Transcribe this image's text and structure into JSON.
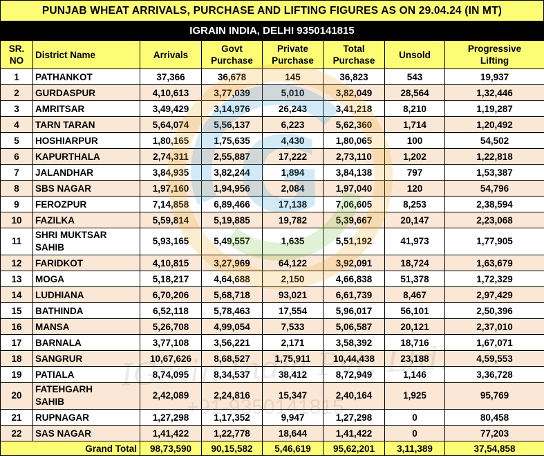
{
  "title": "PUNJAB WHEAT ARRIVALS, PURCHASE AND LIFTING FIGURES AS ON 29.04.24 (IN MT)",
  "subtitle": "IGRAIN INDIA, DELHI 9350141815",
  "headers": {
    "sr_line1": "SR.",
    "sr_line2": "NO",
    "district": "District Name",
    "arrivals": "Arrivals",
    "govt_line1": "Govt",
    "govt_line2": "Purchase",
    "private_line1": "Private",
    "private_line2": "Purchase",
    "total_line1": "Total",
    "total_line2": "Purchase",
    "unsold": "Unsold",
    "lifting_line1": "Progressive",
    "lifting_line2": "Lifting"
  },
  "rows": [
    {
      "sr": "1",
      "district_line1": "PATHANKOT",
      "district_line2": "",
      "arrivals": "37,366",
      "govt": "36,678",
      "private": "145",
      "total": "36,823",
      "unsold": "543",
      "lifting": "19,937"
    },
    {
      "sr": "2",
      "district_line1": "GURDASPUR",
      "district_line2": "",
      "arrivals": "4,10,613",
      "govt": "3,77,039",
      "private": "5,010",
      "total": "3,82,049",
      "unsold": "28,564",
      "lifting": "1,32,446"
    },
    {
      "sr": "3",
      "district_line1": "AMRITSAR",
      "district_line2": "",
      "arrivals": "3,49,429",
      "govt": "3,14,976",
      "private": "26,243",
      "total": "3,41,218",
      "unsold": "8,210",
      "lifting": "1,19,287"
    },
    {
      "sr": "4",
      "district_line1": "TARN TARAN",
      "district_line2": "",
      "arrivals": "5,64,074",
      "govt": "5,56,137",
      "private": "6,223",
      "total": "5,62,360",
      "unsold": "1,714",
      "lifting": "1,20,492"
    },
    {
      "sr": "5",
      "district_line1": "HOSHIARPUR",
      "district_line2": "",
      "arrivals": "1,80,165",
      "govt": "1,75,635",
      "private": "4,430",
      "total": "1,80,065",
      "unsold": "100",
      "lifting": "54,502"
    },
    {
      "sr": "6",
      "district_line1": "KAPURTHALA",
      "district_line2": "",
      "arrivals": "2,74,311",
      "govt": "2,55,887",
      "private": "17,222",
      "total": "2,73,110",
      "unsold": "1,202",
      "lifting": "1,22,818"
    },
    {
      "sr": "7",
      "district_line1": "JALANDHAR",
      "district_line2": "",
      "arrivals": "3,84,935",
      "govt": "3,82,244",
      "private": "1,894",
      "total": "3,84,138",
      "unsold": "797",
      "lifting": "1,53,387"
    },
    {
      "sr": "8",
      "district_line1": "SBS NAGAR",
      "district_line2": "",
      "arrivals": "1,97,160",
      "govt": "1,94,956",
      "private": "2,084",
      "total": "1,97,040",
      "unsold": "120",
      "lifting": "54,796"
    },
    {
      "sr": "9",
      "district_line1": "FEROZPUR",
      "district_line2": "",
      "arrivals": "7,14,858",
      "govt": "6,89,466",
      "private": "17,138",
      "total": "7,06,605",
      "unsold": "8,253",
      "lifting": "2,38,594"
    },
    {
      "sr": "10",
      "district_line1": "FAZILKA",
      "district_line2": "",
      "arrivals": "5,59,814",
      "govt": "5,19,885",
      "private": "19,782",
      "total": "5,39,667",
      "unsold": "20,147",
      "lifting": "2,23,068"
    },
    {
      "sr": "11",
      "district_line1": "SHRI MUKTSAR",
      "district_line2": "SAHIB",
      "arrivals": "5,93,165",
      "govt": "5,49,557",
      "private": "1,635",
      "total": "5,51,192",
      "unsold": "41,973",
      "lifting": "1,77,905"
    },
    {
      "sr": "12",
      "district_line1": "FARIDKOT",
      "district_line2": "",
      "arrivals": "4,10,815",
      "govt": "3,27,969",
      "private": "64,122",
      "total": "3,92,091",
      "unsold": "18,724",
      "lifting": "1,63,679"
    },
    {
      "sr": "13",
      "district_line1": "MOGA",
      "district_line2": "",
      "arrivals": "5,18,217",
      "govt": "4,64,688",
      "private": "2,150",
      "total": "4,66,838",
      "unsold": "51,378",
      "lifting": "1,72,329"
    },
    {
      "sr": "14",
      "district_line1": "LUDHIANA",
      "district_line2": "",
      "arrivals": "6,70,206",
      "govt": "5,68,718",
      "private": "93,021",
      "total": "6,61,739",
      "unsold": "8,467",
      "lifting": "2,97,429"
    },
    {
      "sr": "15",
      "district_line1": "BATHINDA",
      "district_line2": "",
      "arrivals": "6,52,118",
      "govt": "5,78,463",
      "private": "17,554",
      "total": "5,96,017",
      "unsold": "56,101",
      "lifting": "2,50,396"
    },
    {
      "sr": "16",
      "district_line1": "MANSA",
      "district_line2": "",
      "arrivals": "5,26,708",
      "govt": "4,99,054",
      "private": "7,533",
      "total": "5,06,587",
      "unsold": "20,121",
      "lifting": "2,37,010"
    },
    {
      "sr": "17",
      "district_line1": "BARNALA",
      "district_line2": "",
      "arrivals": "3,77,108",
      "govt": "3,56,221",
      "private": "2,171",
      "total": "3,58,392",
      "unsold": "18,716",
      "lifting": "1,67,071"
    },
    {
      "sr": "18",
      "district_line1": "SANGRUR",
      "district_line2": "",
      "arrivals": "10,67,626",
      "govt": "8,68,527",
      "private": "1,75,911",
      "total": "10,44,438",
      "unsold": "23,188",
      "lifting": "4,59,553"
    },
    {
      "sr": "19",
      "district_line1": "PATIALA",
      "district_line2": "",
      "arrivals": "8,74,095",
      "govt": "8,34,537",
      "private": "38,412",
      "total": "8,72,949",
      "unsold": "1,146",
      "lifting": "3,36,728"
    },
    {
      "sr": "20",
      "district_line1": "FATEHGARH",
      "district_line2": "SAHIB",
      "arrivals": "2,42,089",
      "govt": "2,24,816",
      "private": "15,347",
      "total": "2,40,164",
      "unsold": "1,925",
      "lifting": "95,769"
    },
    {
      "sr": "21",
      "district_line1": "RUPNAGAR",
      "district_line2": "",
      "arrivals": "1,27,298",
      "govt": "1,17,352",
      "private": "9,947",
      "total": "1,27,298",
      "unsold": "0",
      "lifting": "80,458"
    },
    {
      "sr": "22",
      "district_line1": "SAS NAGAR",
      "district_line2": "",
      "arrivals": "1,41,422",
      "govt": "1,22,778",
      "private": "18,644",
      "total": "1,41,422",
      "unsold": "0",
      "lifting": "77,203"
    }
  ],
  "grand_total": {
    "label": "Grand Total",
    "arrivals": "98,73,590",
    "govt": "90,15,582",
    "private": "5,46,619",
    "total": "95,62,201",
    "unsold": "3,11,389",
    "lifting": "37,54,858"
  },
  "watermark": {
    "text": "IGrain India Pvt. Ltd.",
    "phone": "+91-9350141815",
    "logo_letter": "G"
  },
  "colors": {
    "header_yellow": "#fdfd75",
    "row_band": "#fbe7d6"
  }
}
